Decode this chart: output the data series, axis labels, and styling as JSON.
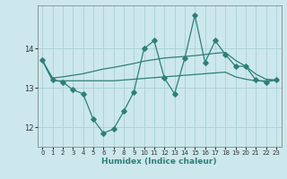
{
  "xlabel": "Humidex (Indice chaleur)",
  "bg_color": "#cce8ec",
  "grid_color": "#aad0d6",
  "line_color": "#2e7f78",
  "xlim": [
    -0.5,
    23.5
  ],
  "ylim": [
    11.5,
    15.1
  ],
  "yticks": [
    12,
    13,
    14
  ],
  "xticks": [
    0,
    1,
    2,
    3,
    4,
    5,
    6,
    7,
    8,
    9,
    10,
    11,
    12,
    13,
    14,
    15,
    16,
    17,
    18,
    19,
    20,
    21,
    22,
    23
  ],
  "x": [
    0,
    1,
    2,
    3,
    4,
    5,
    6,
    7,
    8,
    9,
    10,
    11,
    12,
    13,
    14,
    15,
    16,
    17,
    18,
    19,
    20,
    21,
    22,
    23
  ],
  "y_main": [
    13.7,
    13.2,
    13.15,
    12.95,
    12.85,
    12.2,
    11.85,
    11.95,
    12.4,
    12.9,
    14.0,
    14.2,
    13.25,
    12.85,
    13.75,
    14.85,
    13.65,
    14.2,
    13.85,
    13.55,
    13.55,
    13.2,
    13.15,
    13.2
  ],
  "y_upper": [
    13.7,
    13.25,
    13.28,
    13.32,
    13.36,
    13.42,
    13.48,
    13.52,
    13.57,
    13.62,
    13.68,
    13.72,
    13.76,
    13.78,
    13.8,
    13.82,
    13.85,
    13.88,
    13.9,
    13.7,
    13.55,
    13.35,
    13.22,
    13.2
  ],
  "y_lower": [
    13.7,
    13.18,
    13.18,
    13.18,
    13.18,
    13.18,
    13.18,
    13.18,
    13.2,
    13.22,
    13.24,
    13.26,
    13.28,
    13.3,
    13.32,
    13.34,
    13.36,
    13.38,
    13.4,
    13.28,
    13.22,
    13.18,
    13.18,
    13.2
  ]
}
